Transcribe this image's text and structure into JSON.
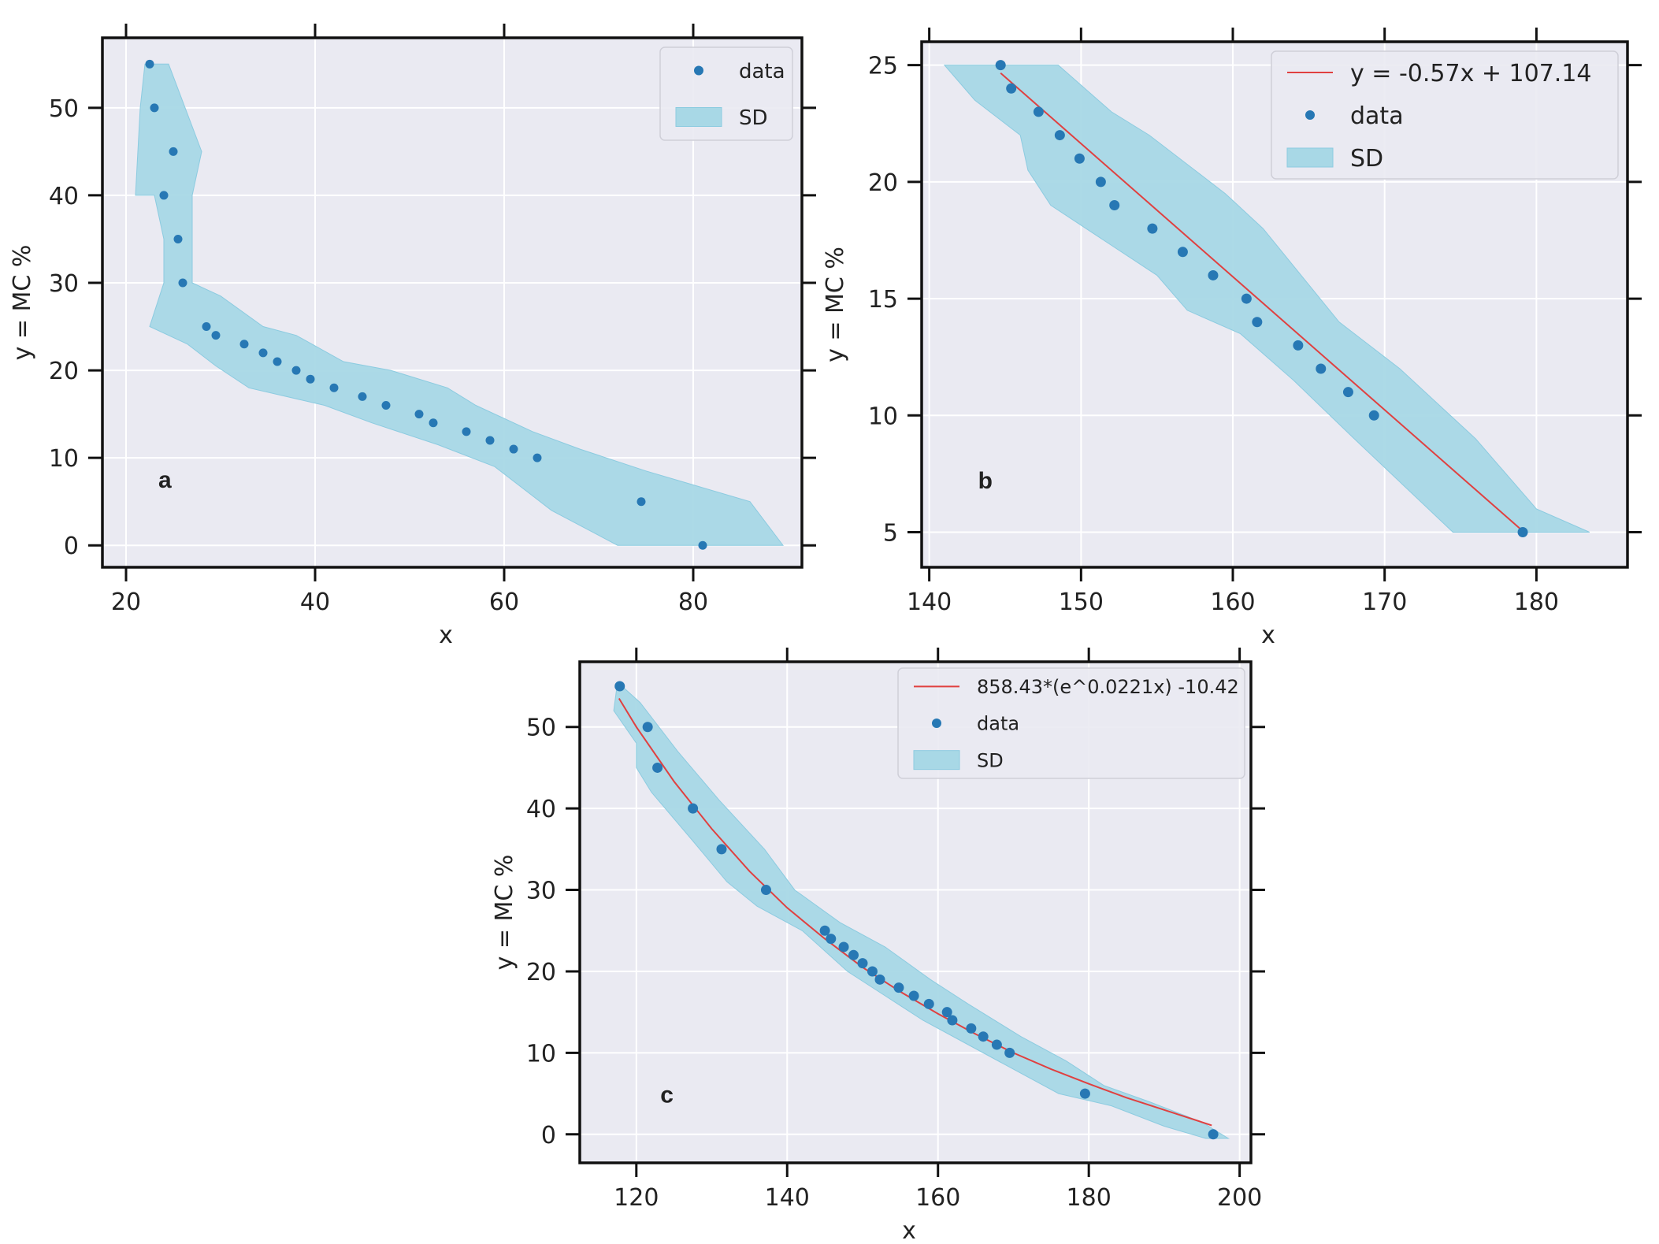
{
  "figure": {
    "title": ""
  },
  "colors": {
    "axes_bg": "#eaeaf2",
    "grid": "#ffffff",
    "band": "#a8d8e6",
    "band_edge": "#8ccbe0",
    "point": "#2778b4",
    "fit": "#e04040",
    "frame": "#111111"
  },
  "chart_data": [
    {
      "id": "a",
      "type": "scatter",
      "panel_label": "a",
      "xlabel": "x",
      "ylabel": "y = MC %",
      "xlim": [
        17.5,
        91.5
      ],
      "ylim": [
        -2.5,
        58
      ],
      "xticks": [
        20,
        40,
        60,
        80
      ],
      "yticks": [
        0,
        10,
        20,
        30,
        40,
        50
      ],
      "legend": {
        "position": "top-right",
        "entries": [
          "data",
          "SD"
        ]
      },
      "points": [
        [
          22.5,
          55
        ],
        [
          23.0,
          50
        ],
        [
          25.0,
          45
        ],
        [
          24.0,
          40
        ],
        [
          25.5,
          35
        ],
        [
          26.0,
          30
        ],
        [
          28.5,
          25
        ],
        [
          29.5,
          24
        ],
        [
          32.5,
          23
        ],
        [
          34.5,
          22
        ],
        [
          36.0,
          21
        ],
        [
          38.0,
          20
        ],
        [
          39.5,
          19
        ],
        [
          42.0,
          18
        ],
        [
          45.0,
          17
        ],
        [
          47.5,
          16
        ],
        [
          51.0,
          15
        ],
        [
          52.5,
          14
        ],
        [
          56.0,
          13
        ],
        [
          58.5,
          12
        ],
        [
          61.0,
          11
        ],
        [
          63.5,
          10
        ],
        [
          74.5,
          5
        ],
        [
          81.0,
          0
        ]
      ],
      "sd_band": {
        "upper": [
          [
            22.0,
            55
          ],
          [
            24.5,
            55
          ],
          [
            28.0,
            45
          ],
          [
            27.0,
            40
          ],
          [
            27.0,
            30
          ],
          [
            30.0,
            28.5
          ],
          [
            34.5,
            25
          ],
          [
            38.0,
            24
          ],
          [
            43.0,
            21
          ],
          [
            48.0,
            20
          ],
          [
            54.0,
            18
          ],
          [
            57.0,
            16
          ],
          [
            63.0,
            13
          ],
          [
            68.0,
            11
          ],
          [
            75.0,
            8.5
          ],
          [
            86.0,
            5
          ],
          [
            89.5,
            0
          ]
        ],
        "lower": [
          [
            72.0,
            0
          ],
          [
            65.0,
            4
          ],
          [
            59.0,
            9
          ],
          [
            53.0,
            11.5
          ],
          [
            46.0,
            14
          ],
          [
            41.0,
            16
          ],
          [
            33.0,
            18
          ],
          [
            29.5,
            20.5
          ],
          [
            26.5,
            23
          ],
          [
            22.5,
            25
          ],
          [
            24.0,
            30
          ],
          [
            24.0,
            35
          ],
          [
            23.0,
            40
          ],
          [
            21.0,
            40
          ],
          [
            21.5,
            50
          ],
          [
            22.0,
            55
          ]
        ]
      }
    },
    {
      "id": "b",
      "type": "scatter",
      "panel_label": "b",
      "xlabel": "x",
      "ylabel": "y = MC %",
      "xlim": [
        139.5,
        186
      ],
      "ylim": [
        3.5,
        26
      ],
      "xticks": [
        140,
        150,
        160,
        170,
        180
      ],
      "yticks": [
        5,
        10,
        15,
        20,
        25
      ],
      "legend": {
        "position": "top-right",
        "entries": [
          "y = -0.57x + 107.14",
          "data",
          "SD"
        ]
      },
      "fit_label": "y = -0.57x + 107.14",
      "fit": {
        "kind": "linear",
        "slope": -0.57,
        "intercept": 107.14,
        "x_range": [
          144.7,
          179.1
        ]
      },
      "points": [
        [
          144.7,
          25
        ],
        [
          145.4,
          24
        ],
        [
          147.2,
          23
        ],
        [
          148.6,
          22
        ],
        [
          149.9,
          21
        ],
        [
          151.3,
          20
        ],
        [
          152.2,
          19
        ],
        [
          154.7,
          18
        ],
        [
          156.7,
          17
        ],
        [
          158.7,
          16
        ],
        [
          160.9,
          15
        ],
        [
          161.6,
          14
        ],
        [
          164.3,
          13
        ],
        [
          165.8,
          12
        ],
        [
          167.6,
          11
        ],
        [
          169.3,
          10
        ],
        [
          179.1,
          5
        ]
      ],
      "sd_band": {
        "upper": [
          [
            141.0,
            25
          ],
          [
            148.5,
            25
          ],
          [
            152.0,
            23
          ],
          [
            154.5,
            22
          ],
          [
            157.5,
            20.5
          ],
          [
            159.5,
            19.5
          ],
          [
            162.0,
            18
          ],
          [
            164.5,
            16
          ],
          [
            167.0,
            14
          ],
          [
            171.0,
            12
          ],
          [
            176.0,
            9
          ],
          [
            180.0,
            6
          ],
          [
            183.5,
            5
          ]
        ],
        "lower": [
          [
            174.5,
            5
          ],
          [
            168.0,
            9
          ],
          [
            164.0,
            11.5
          ],
          [
            160.5,
            13.5
          ],
          [
            157.0,
            14.5
          ],
          [
            155.0,
            16
          ],
          [
            151.5,
            17.5
          ],
          [
            148.0,
            19
          ],
          [
            146.5,
            20.5
          ],
          [
            146.0,
            22
          ],
          [
            143.0,
            23.5
          ],
          [
            141.0,
            25
          ]
        ]
      }
    },
    {
      "id": "c",
      "type": "scatter",
      "panel_label": "c",
      "xlabel": "x",
      "ylabel": "y = MC %",
      "xlim": [
        112.5,
        201.5
      ],
      "ylim": [
        -3.5,
        58
      ],
      "xticks": [
        120,
        140,
        160,
        180,
        200
      ],
      "yticks": [
        0,
        10,
        20,
        30,
        40,
        50
      ],
      "legend": {
        "position": "top-right",
        "entries": [
          "858.43*(e^0.0221x) -10.42",
          "data",
          "SD"
        ]
      },
      "fit_label": "858.43*(e^0.0221x) -10.42",
      "fit": {
        "kind": "curve",
        "points": [
          [
            117.7,
            53.5
          ],
          [
            120,
            50.0
          ],
          [
            125,
            43.3
          ],
          [
            130,
            37.5
          ],
          [
            135,
            32.3
          ],
          [
            140,
            27.8
          ],
          [
            145,
            24.0
          ],
          [
            150,
            20.5
          ],
          [
            155,
            17.5
          ],
          [
            160,
            14.8
          ],
          [
            165,
            12.3
          ],
          [
            170,
            10.0
          ],
          [
            175,
            8.0
          ],
          [
            180,
            6.2
          ],
          [
            185,
            4.5
          ],
          [
            190,
            3.0
          ],
          [
            196.3,
            1.1
          ]
        ]
      },
      "points": [
        [
          117.8,
          55
        ],
        [
          121.5,
          50
        ],
        [
          122.8,
          45
        ],
        [
          127.5,
          40
        ],
        [
          131.3,
          35
        ],
        [
          137.2,
          30
        ],
        [
          145.0,
          25
        ],
        [
          145.8,
          24
        ],
        [
          147.5,
          23
        ],
        [
          148.8,
          22
        ],
        [
          150.0,
          21
        ],
        [
          151.3,
          20
        ],
        [
          152.3,
          19
        ],
        [
          154.8,
          18
        ],
        [
          156.8,
          17
        ],
        [
          158.8,
          16
        ],
        [
          161.2,
          15
        ],
        [
          161.9,
          14
        ],
        [
          164.4,
          13
        ],
        [
          166.0,
          12
        ],
        [
          167.8,
          11
        ],
        [
          169.5,
          10
        ],
        [
          179.5,
          5
        ],
        [
          196.5,
          0
        ]
      ],
      "sd_band": {
        "upper": [
          [
            117.5,
            55.5
          ],
          [
            120.5,
            53
          ],
          [
            125.5,
            47
          ],
          [
            131.0,
            41
          ],
          [
            137.0,
            35
          ],
          [
            141.0,
            30
          ],
          [
            147.0,
            26
          ],
          [
            153.0,
            23
          ],
          [
            159.0,
            19
          ],
          [
            164.0,
            16
          ],
          [
            171.0,
            12
          ],
          [
            177.0,
            9
          ],
          [
            182.0,
            6
          ],
          [
            188.0,
            4
          ],
          [
            195.0,
            1.5
          ],
          [
            198.5,
            -0.5
          ]
        ],
        "lower": [
          [
            195.5,
            -0.5
          ],
          [
            190.0,
            1
          ],
          [
            183.0,
            3.5
          ],
          [
            176.0,
            5
          ],
          [
            170.0,
            8
          ],
          [
            164.0,
            11
          ],
          [
            158.0,
            14
          ],
          [
            153.0,
            17
          ],
          [
            148.0,
            20
          ],
          [
            142.0,
            25
          ],
          [
            136.0,
            28
          ],
          [
            132.0,
            31
          ],
          [
            127.5,
            36
          ],
          [
            122.0,
            42
          ],
          [
            120.0,
            45
          ],
          [
            120.0,
            48
          ],
          [
            117.0,
            52
          ]
        ]
      }
    }
  ]
}
